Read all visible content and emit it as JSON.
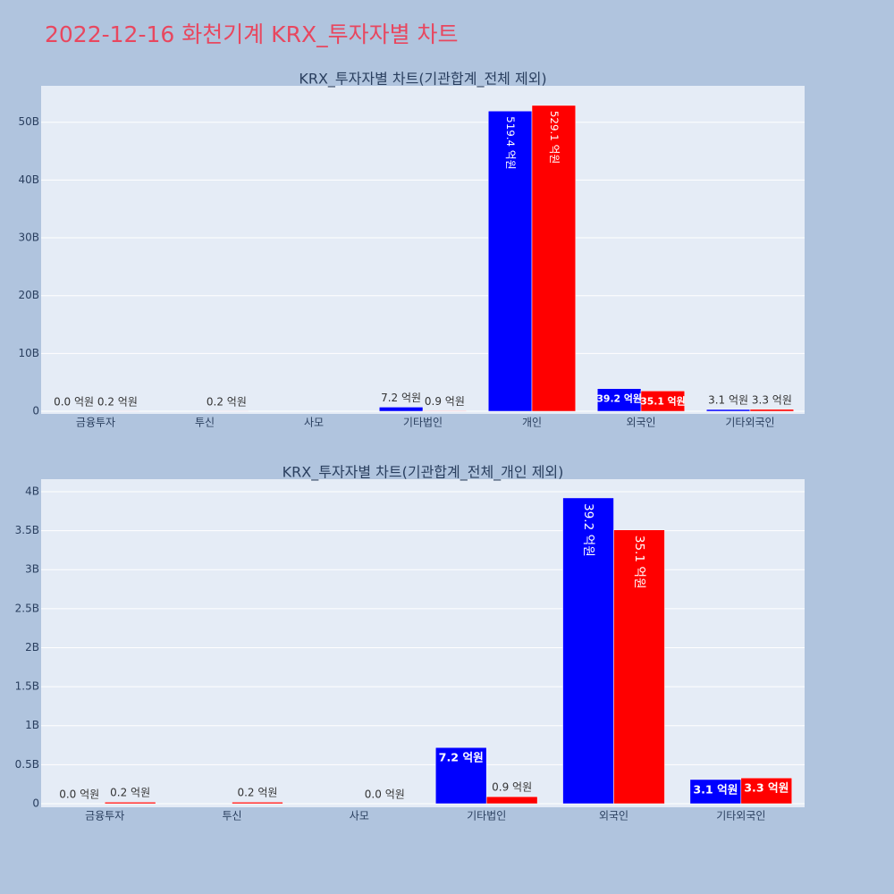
{
  "title": "2022-12-16 화천기계 KRX_투자자별 차트",
  "chart_data": [
    {
      "type": "bar",
      "title": "KRX_투자자별 차트(기관합계_전체 제외)",
      "categories": [
        "금융투자",
        "투신",
        "사모",
        "기타법인",
        "개인",
        "외국인",
        "기타외국인"
      ],
      "series": [
        {
          "color": "#0000ff",
          "values": [
            0,
            null,
            null,
            720000000,
            51940000000,
            3920000000,
            310000000
          ],
          "value_labels": [
            "0.0 억원",
            null,
            null,
            "7.2 억원",
            "519.4 억원",
            "39.2 억원",
            "3.1 억원"
          ]
        },
        {
          "color": "#ff0000",
          "values": [
            20000000,
            20000000,
            null,
            90000000,
            52910000000,
            3510000000,
            330000000
          ],
          "value_labels": [
            "0.2 억원",
            "0.2 억원",
            null,
            "0.9 억원",
            "529.1 억원",
            "35.1 억원",
            "3.3 억원"
          ]
        }
      ],
      "ylim": [
        -460000000,
        56300000000
      ],
      "yticks": [
        0,
        {
          "value": 10000000000,
          "label": "10B"
        },
        {
          "value": 20000000000,
          "label": "20B"
        },
        {
          "value": 30000000000,
          "label": "30B"
        },
        {
          "value": 40000000000,
          "label": "40B"
        },
        {
          "value": 50000000000,
          "label": "50B"
        }
      ],
      "grid": true
    },
    {
      "type": "bar",
      "title": "KRX_투자자별 차트(기관합계_전체_개인 제외)",
      "categories": [
        "금융투자",
        "투신",
        "사모",
        "기타법인",
        "외국인",
        "기타외국인"
      ],
      "series": [
        {
          "color": "#0000ff",
          "values": [
            0,
            null,
            null,
            720000000,
            3920000000,
            310000000
          ],
          "value_labels": [
            "0.0 억원",
            null,
            null,
            "7.2 억원",
            "39.2 억원",
            "3.1 억원"
          ]
        },
        {
          "color": "#ff0000",
          "values": [
            20000000,
            20000000,
            0,
            90000000,
            3510000000,
            330000000
          ],
          "value_labels": [
            "0.2 억원",
            "0.2 억원",
            "0.0 억원",
            "0.9 억원",
            "35.1 억원",
            "3.3 억원"
          ]
        }
      ],
      "ylim": [
        -46000000,
        4160000000
      ],
      "yticks": [
        0,
        {
          "value": 500000000,
          "label": "0.5B"
        },
        {
          "value": 1000000000,
          "label": "1B"
        },
        {
          "value": 1500000000,
          "label": "1.5B"
        },
        {
          "value": 2000000000,
          "label": "2B"
        },
        {
          "value": 2500000000,
          "label": "2.5B"
        },
        {
          "value": 3000000000,
          "label": "3B"
        },
        {
          "value": 3500000000,
          "label": "3.5B"
        },
        {
          "value": 4000000000,
          "label": "4B"
        }
      ],
      "grid": true
    }
  ]
}
